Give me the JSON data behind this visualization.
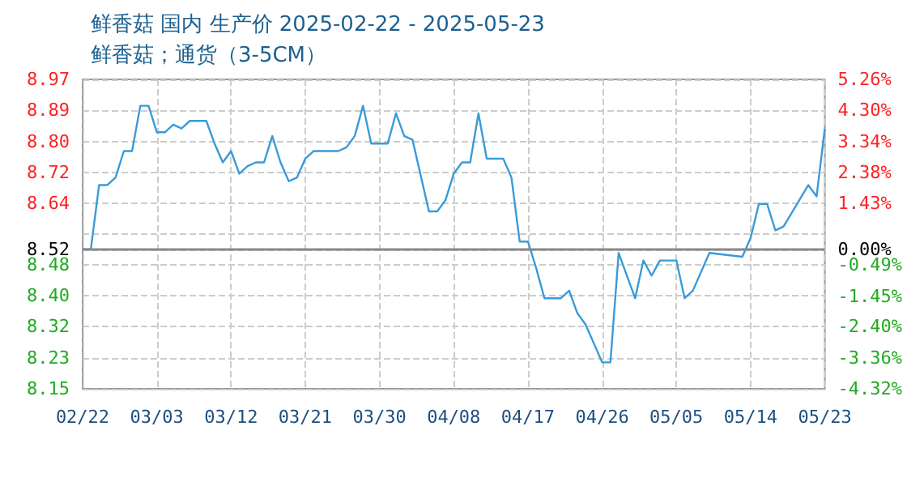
{
  "chart_data": {
    "type": "line",
    "title": "鲜香菇 国内 生产价 2025-02-22 - 2025-05-23",
    "subtitle": "鲜香菇；通货（3-5CM）",
    "x": [
      "2025-02-22",
      "2025-02-23",
      "2025-02-24",
      "2025-02-25",
      "2025-02-26",
      "2025-02-27",
      "2025-02-28",
      "2025-03-01",
      "2025-03-02",
      "2025-03-03",
      "2025-03-04",
      "2025-03-05",
      "2025-03-06",
      "2025-03-07",
      "2025-03-09",
      "2025-03-10",
      "2025-03-11",
      "2025-03-12",
      "2025-03-13",
      "2025-03-14",
      "2025-03-15",
      "2025-03-16",
      "2025-03-17",
      "2025-03-18",
      "2025-03-19",
      "2025-03-20",
      "2025-03-21",
      "2025-03-22",
      "2025-03-25",
      "2025-03-26",
      "2025-03-27",
      "2025-03-28",
      "2025-03-29",
      "2025-03-31",
      "2025-04-01",
      "2025-04-02",
      "2025-04-03",
      "2025-04-05",
      "2025-04-06",
      "2025-04-07",
      "2025-04-08",
      "2025-04-09",
      "2025-04-10",
      "2025-04-11",
      "2025-04-12",
      "2025-04-14",
      "2025-04-15",
      "2025-04-16",
      "2025-04-17",
      "2025-04-18",
      "2025-04-19",
      "2025-04-21",
      "2025-04-22",
      "2025-04-23",
      "2025-04-24",
      "2025-04-26",
      "2025-04-27",
      "2025-04-28",
      "2025-04-30",
      "2025-05-01",
      "2025-05-02",
      "2025-05-03",
      "2025-05-05",
      "2025-05-06",
      "2025-05-07",
      "2025-05-09",
      "2025-05-13",
      "2025-05-14",
      "2025-05-15",
      "2025-05-16",
      "2025-05-17",
      "2025-05-18",
      "2025-05-21",
      "2025-05-22",
      "2025-05-23"
    ],
    "series": [
      {
        "color": "#3a9ad9",
        "values": [
          8.52,
          8.52,
          8.69,
          8.69,
          8.71,
          8.78,
          8.78,
          8.9,
          8.9,
          8.83,
          8.83,
          8.85,
          8.84,
          8.86,
          8.86,
          8.8,
          8.75,
          8.78,
          8.72,
          8.74,
          8.75,
          8.75,
          8.82,
          8.75,
          8.7,
          8.71,
          8.76,
          8.78,
          8.78,
          8.79,
          8.82,
          8.9,
          8.8,
          8.8,
          8.88,
          8.82,
          8.81,
          8.62,
          8.62,
          8.65,
          8.72,
          8.75,
          8.75,
          8.88,
          8.76,
          8.76,
          8.71,
          8.54,
          8.54,
          8.47,
          8.39,
          8.39,
          8.41,
          8.35,
          8.32,
          8.22,
          8.22,
          8.51,
          8.39,
          8.49,
          8.45,
          8.49,
          8.49,
          8.39,
          8.41,
          8.51,
          8.5,
          8.55,
          8.64,
          8.64,
          8.57,
          8.58,
          8.69,
          8.66,
          8.84
        ]
      }
    ],
    "xlim": [
      "2025-02-22",
      "2025-05-23"
    ],
    "xticks": [
      {
        "value": "2025-02-22",
        "label": "02/22"
      },
      {
        "value": "2025-03-03",
        "label": "03/03"
      },
      {
        "value": "2025-03-12",
        "label": "03/12"
      },
      {
        "value": "2025-03-21",
        "label": "03/21"
      },
      {
        "value": "2025-03-30",
        "label": "03/30"
      },
      {
        "value": "2025-04-08",
        "label": "04/08"
      },
      {
        "value": "2025-04-17",
        "label": "04/17"
      },
      {
        "value": "2025-04-26",
        "label": "04/26"
      },
      {
        "value": "2025-05-05",
        "label": "05/05"
      },
      {
        "value": "2025-05-14",
        "label": "05/14"
      },
      {
        "value": "2025-05-23",
        "label": "05/23"
      }
    ],
    "ylim": [
      8.15,
      8.97
    ],
    "yticks": [
      8.15,
      {
        "value": 8.232,
        "label": "8.23"
      },
      {
        "value": 8.316,
        "label": "8.32"
      },
      {
        "value": 8.396,
        "label": "8.40"
      },
      {
        "value": 8.478,
        "label": "8.48"
      },
      8.52,
      {
        "value": 8.56,
        "label": null
      },
      {
        "value": 8.642,
        "label": "8.64"
      },
      {
        "value": 8.724,
        "label": "8.72"
      },
      {
        "value": 8.804,
        "label": "8.80"
      },
      {
        "value": 8.888,
        "label": "8.89"
      },
      8.97
    ],
    "y2lim": [
      -4.32,
      5.26
    ],
    "y2ticks": [
      {
        "value": -4.32,
        "label": "-4.32%"
      },
      {
        "value": -3.36,
        "label": "-3.36%"
      },
      {
        "value": -2.4,
        "label": "-2.40%"
      },
      {
        "value": -1.45,
        "label": "-1.45%"
      },
      {
        "value": -0.49,
        "label": "-0.49%"
      },
      {
        "value": 0,
        "label": "0.00%"
      },
      {
        "value": 1.43,
        "label": "1.43%"
      },
      {
        "value": 2.38,
        "label": "2.38%"
      },
      {
        "value": 3.34,
        "label": "3.34%"
      },
      {
        "value": 4.3,
        "label": "4.30%"
      },
      {
        "value": 5.26,
        "label": "5.26%"
      }
    ],
    "ref_lines": [
      {
        "axis": "y",
        "value": 8.52,
        "color": "#888888",
        "line_style": "solid"
      }
    ],
    "grid": true,
    "marker": "none",
    "line_style": "solid"
  }
}
